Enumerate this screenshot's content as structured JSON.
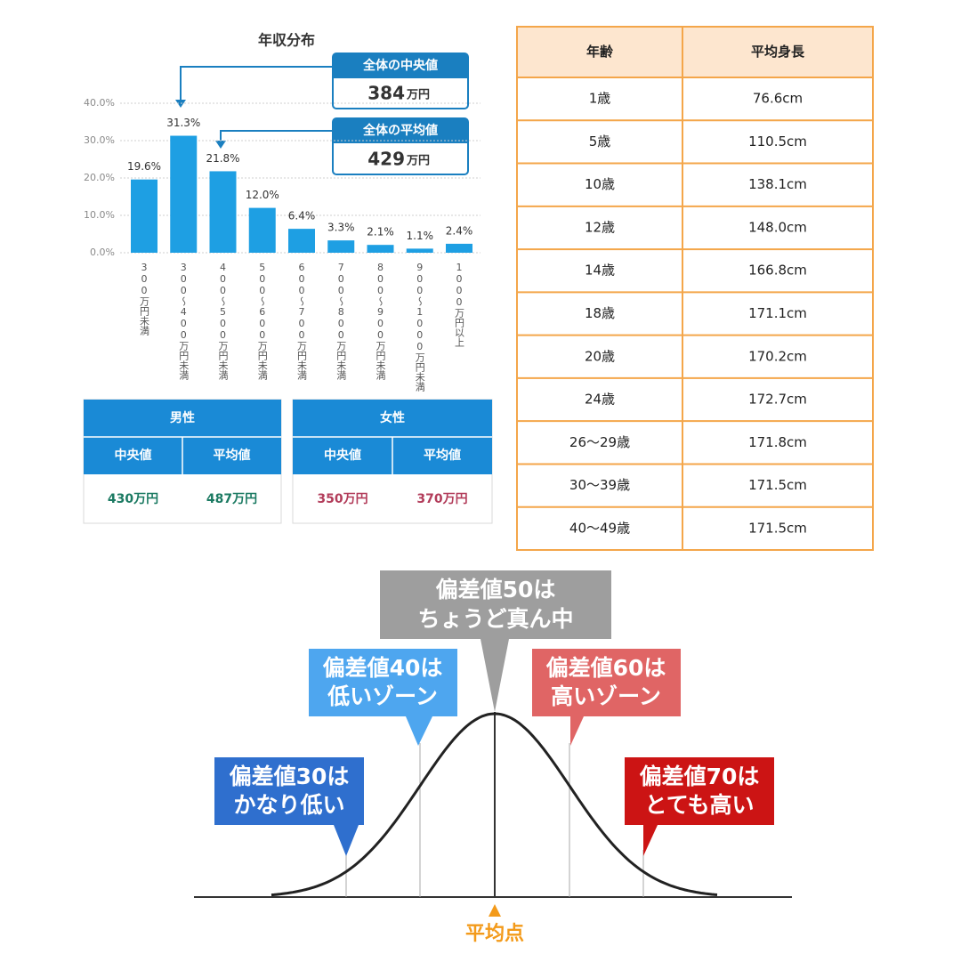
{
  "chart_data": {
    "type": "bar",
    "title": "年収分布",
    "categories": [
      "300万円未満",
      "300〜400万円未満",
      "400〜500万円未満",
      "500〜600万円未満",
      "600〜700万円未満",
      "700〜800万円未満",
      "800〜900万円未満",
      "900〜1000万円未満",
      "1000万円以上"
    ],
    "values": [
      19.6,
      31.3,
      21.8,
      12.0,
      6.4,
      3.3,
      2.1,
      1.1,
      2.4
    ],
    "value_labels": [
      "19.6%",
      "31.3%",
      "21.8%",
      "12.0%",
      "6.4%",
      "3.3%",
      "2.1%",
      "1.1%",
      "2.4%"
    ],
    "color": "#1e9fe3",
    "ylim": [
      0,
      40
    ],
    "yticks": [
      {
        "value": 0,
        "label": "0.0%"
      },
      {
        "value": 10,
        "label": "10.0%"
      },
      {
        "value": 20,
        "label": "20.0%"
      },
      {
        "value": 30,
        "label": "30.0%"
      },
      {
        "value": 40,
        "label": "40.0%"
      }
    ],
    "grid": true,
    "annotations": [
      {
        "label": "全体の中央値",
        "value": 384,
        "unit": "万円"
      },
      {
        "label": "全体の平均値",
        "value": 429,
        "unit": "万円"
      }
    ]
  },
  "summary_table": [
    {
      "group": "男性",
      "columns": [
        "中央値",
        "平均値"
      ],
      "values": [
        "430万円",
        "487万円"
      ]
    },
    {
      "group": "女性",
      "columns": [
        "中央値",
        "平均値"
      ],
      "values": [
        "350万円",
        "370万円"
      ]
    }
  ],
  "height_table": {
    "header": [
      "年齢",
      "平均身長"
    ],
    "rows": [
      [
        "1歳",
        "76.6cm"
      ],
      [
        "5歳",
        "110.5cm"
      ],
      [
        "10歳",
        "138.1cm"
      ],
      [
        "12歳",
        "148.0cm"
      ],
      [
        "14歳",
        "166.8cm"
      ],
      [
        "18歳",
        "171.1cm"
      ],
      [
        "20歳",
        "170.2cm"
      ],
      [
        "24歳",
        "172.7cm"
      ],
      [
        "26〜29歳",
        "171.8cm"
      ],
      [
        "30〜39歳",
        "171.5cm"
      ],
      [
        "40〜49歳",
        "171.5cm"
      ]
    ]
  },
  "deviation_diagram": {
    "callouts": [
      [
        "偏差値50は",
        "ちょうど真ん中"
      ],
      [
        "偏差値40は",
        "低いゾーン"
      ],
      [
        "偏差値60は",
        "高いゾーン"
      ],
      [
        "偏差値30は",
        "かなり低い"
      ],
      [
        "偏差値70は",
        "とても高い"
      ]
    ],
    "axis_label": "平均点"
  }
}
